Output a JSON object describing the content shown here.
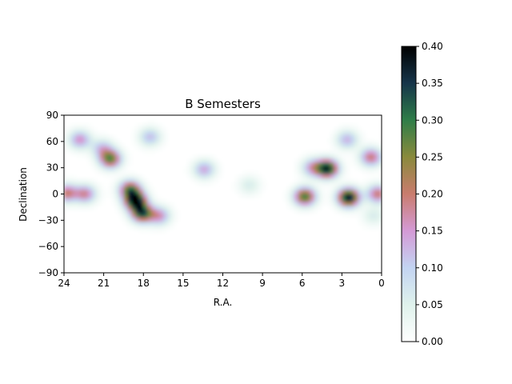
{
  "chart_data": {
    "type": "heatmap",
    "title": "B Semesters",
    "xlabel": "R.A.",
    "ylabel": "Declination",
    "xlim": [
      24,
      0
    ],
    "ylim": [
      -90,
      90
    ],
    "x_ticks": [
      24,
      21,
      18,
      15,
      12,
      9,
      6,
      3,
      0
    ],
    "x_tick_labels": [
      "24",
      "21",
      "18",
      "15",
      "12",
      "9",
      "6",
      "3",
      "0"
    ],
    "y_ticks": [
      90,
      60,
      30,
      0,
      -30,
      -60,
      -90
    ],
    "y_tick_labels": [
      "90",
      "60",
      "30",
      "0",
      "−30",
      "−60",
      "−90"
    ],
    "colorbar": {
      "range": [
        0,
        0.4
      ],
      "ticks": [
        0.0,
        0.05,
        0.1,
        0.15,
        0.2,
        0.25,
        0.3,
        0.35,
        0.4
      ],
      "tick_labels": [
        "0.00",
        "0.05",
        "0.10",
        "0.15",
        "0.20",
        "0.25",
        "0.30",
        "0.35",
        "0.40"
      ],
      "colormap": "cubehelix_r",
      "colormap_stops": [
        "#ffffff",
        "#dff2ec",
        "#c3d4f2",
        "#d49ad6",
        "#c97c6e",
        "#8a8a3c",
        "#2f7d48",
        "#16354a",
        "#000000"
      ]
    },
    "grid": false,
    "density_peaks": [
      {
        "ra": 18.6,
        "dec": -8,
        "value": 0.4
      },
      {
        "ra": 18.1,
        "dec": -22,
        "value": 0.33
      },
      {
        "ra": 19.0,
        "dec": 5,
        "value": 0.28
      },
      {
        "ra": 4.1,
        "dec": 29,
        "value": 0.38
      },
      {
        "ra": 2.5,
        "dec": -4,
        "value": 0.4
      },
      {
        "ra": 5.8,
        "dec": -3,
        "value": 0.3
      },
      {
        "ra": 20.5,
        "dec": 40,
        "value": 0.28
      },
      {
        "ra": 23.8,
        "dec": 1,
        "value": 0.2
      },
      {
        "ra": 22.4,
        "dec": 0,
        "value": 0.18
      },
      {
        "ra": 0.3,
        "dec": 0,
        "value": 0.2
      },
      {
        "ra": 0.8,
        "dec": 42,
        "value": 0.2
      },
      {
        "ra": 2.6,
        "dec": 62,
        "value": 0.13
      },
      {
        "ra": 22.8,
        "dec": 62,
        "value": 0.16
      },
      {
        "ra": 17.5,
        "dec": 65,
        "value": 0.12
      },
      {
        "ra": 13.4,
        "dec": 28,
        "value": 0.14
      },
      {
        "ra": 21.1,
        "dec": 52,
        "value": 0.12
      },
      {
        "ra": 16.8,
        "dec": -25,
        "value": 0.16
      },
      {
        "ra": 5.2,
        "dec": 30,
        "value": 0.15
      },
      {
        "ra": 0.6,
        "dec": -25,
        "value": 0.06
      },
      {
        "ra": 10.0,
        "dec": 10,
        "value": 0.06
      }
    ]
  }
}
